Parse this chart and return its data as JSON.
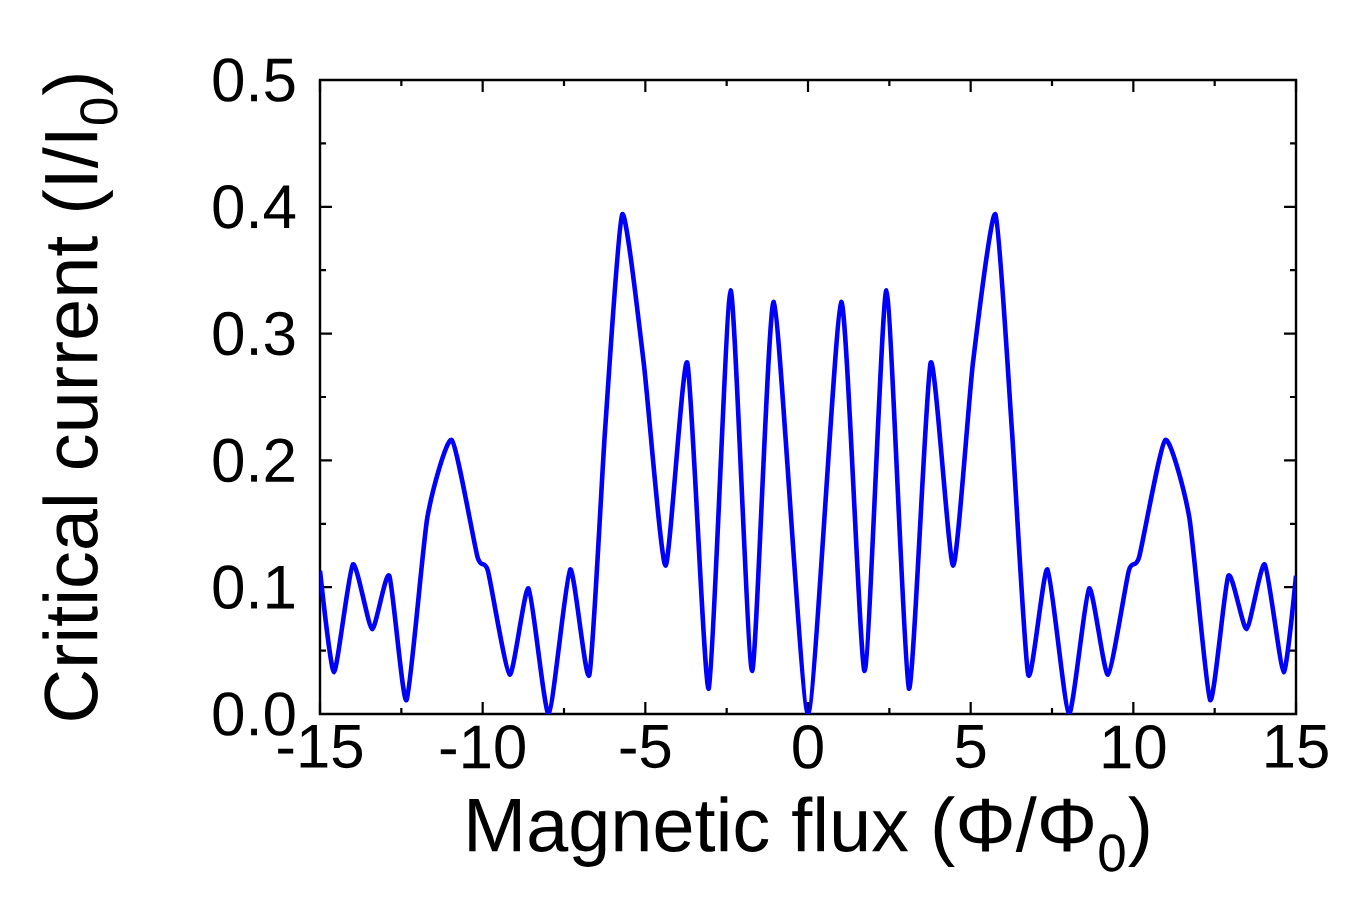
{
  "chart_data": {
    "type": "line",
    "xlabel": "Magnetic flux (Φ/Φ$_{0}$)",
    "ylabel": "Critical current (I/I$_{0}$)",
    "x": [
      -15,
      -14.57,
      -13.99,
      -13.4,
      -12.87,
      -12.34,
      -11.7,
      -10.95,
      -10.16,
      -9.84,
      -9.17,
      -8.59,
      -7.97,
      -7.31,
      -6.72,
      -6.24,
      -5.71,
      -5.05,
      -4.38,
      -3.71,
      -3.05,
      -2.38,
      -1.72,
      -1.05,
      0,
      1.02,
      1.74,
      2.41,
      3.1,
      3.77,
      4.46,
      5.07,
      5.76,
      6.27,
      6.77,
      7.36,
      8.02,
      8.64,
      9.22,
      9.86,
      10.18,
      10.98,
      11.72,
      12.36,
      12.92,
      13.48,
      14.04,
      14.62,
      15
    ],
    "series": [
      {
        "color": "#0000ff",
        "values": [
          0.113,
          0.033,
          0.118,
          0.067,
          0.109,
          0.011,
          0.155,
          0.216,
          0.124,
          0.113,
          0.031,
          0.099,
          0.0,
          0.114,
          0.031,
          0.223,
          0.394,
          0.277,
          0.117,
          0.277,
          0.02,
          0.334,
          0.034,
          0.325,
          0.0,
          0.325,
          0.034,
          0.334,
          0.02,
          0.277,
          0.117,
          0.277,
          0.394,
          0.223,
          0.031,
          0.114,
          0.0,
          0.099,
          0.031,
          0.113,
          0.124,
          0.216,
          0.155,
          0.011,
          0.109,
          0.067,
          0.118,
          0.033,
          0.109
        ]
      }
    ],
    "xlim": [
      -15,
      15
    ],
    "ylim": [
      0,
      0.5
    ],
    "xticks": [
      -15,
      -10,
      -5,
      0,
      5,
      10,
      15
    ],
    "yticks": [
      {
        "value": 0,
        "label": "0.0"
      },
      0.1,
      0.2,
      0.3,
      0.4,
      0.5
    ],
    "marker": "none",
    "line_style": "solid",
    "grid": false
  }
}
